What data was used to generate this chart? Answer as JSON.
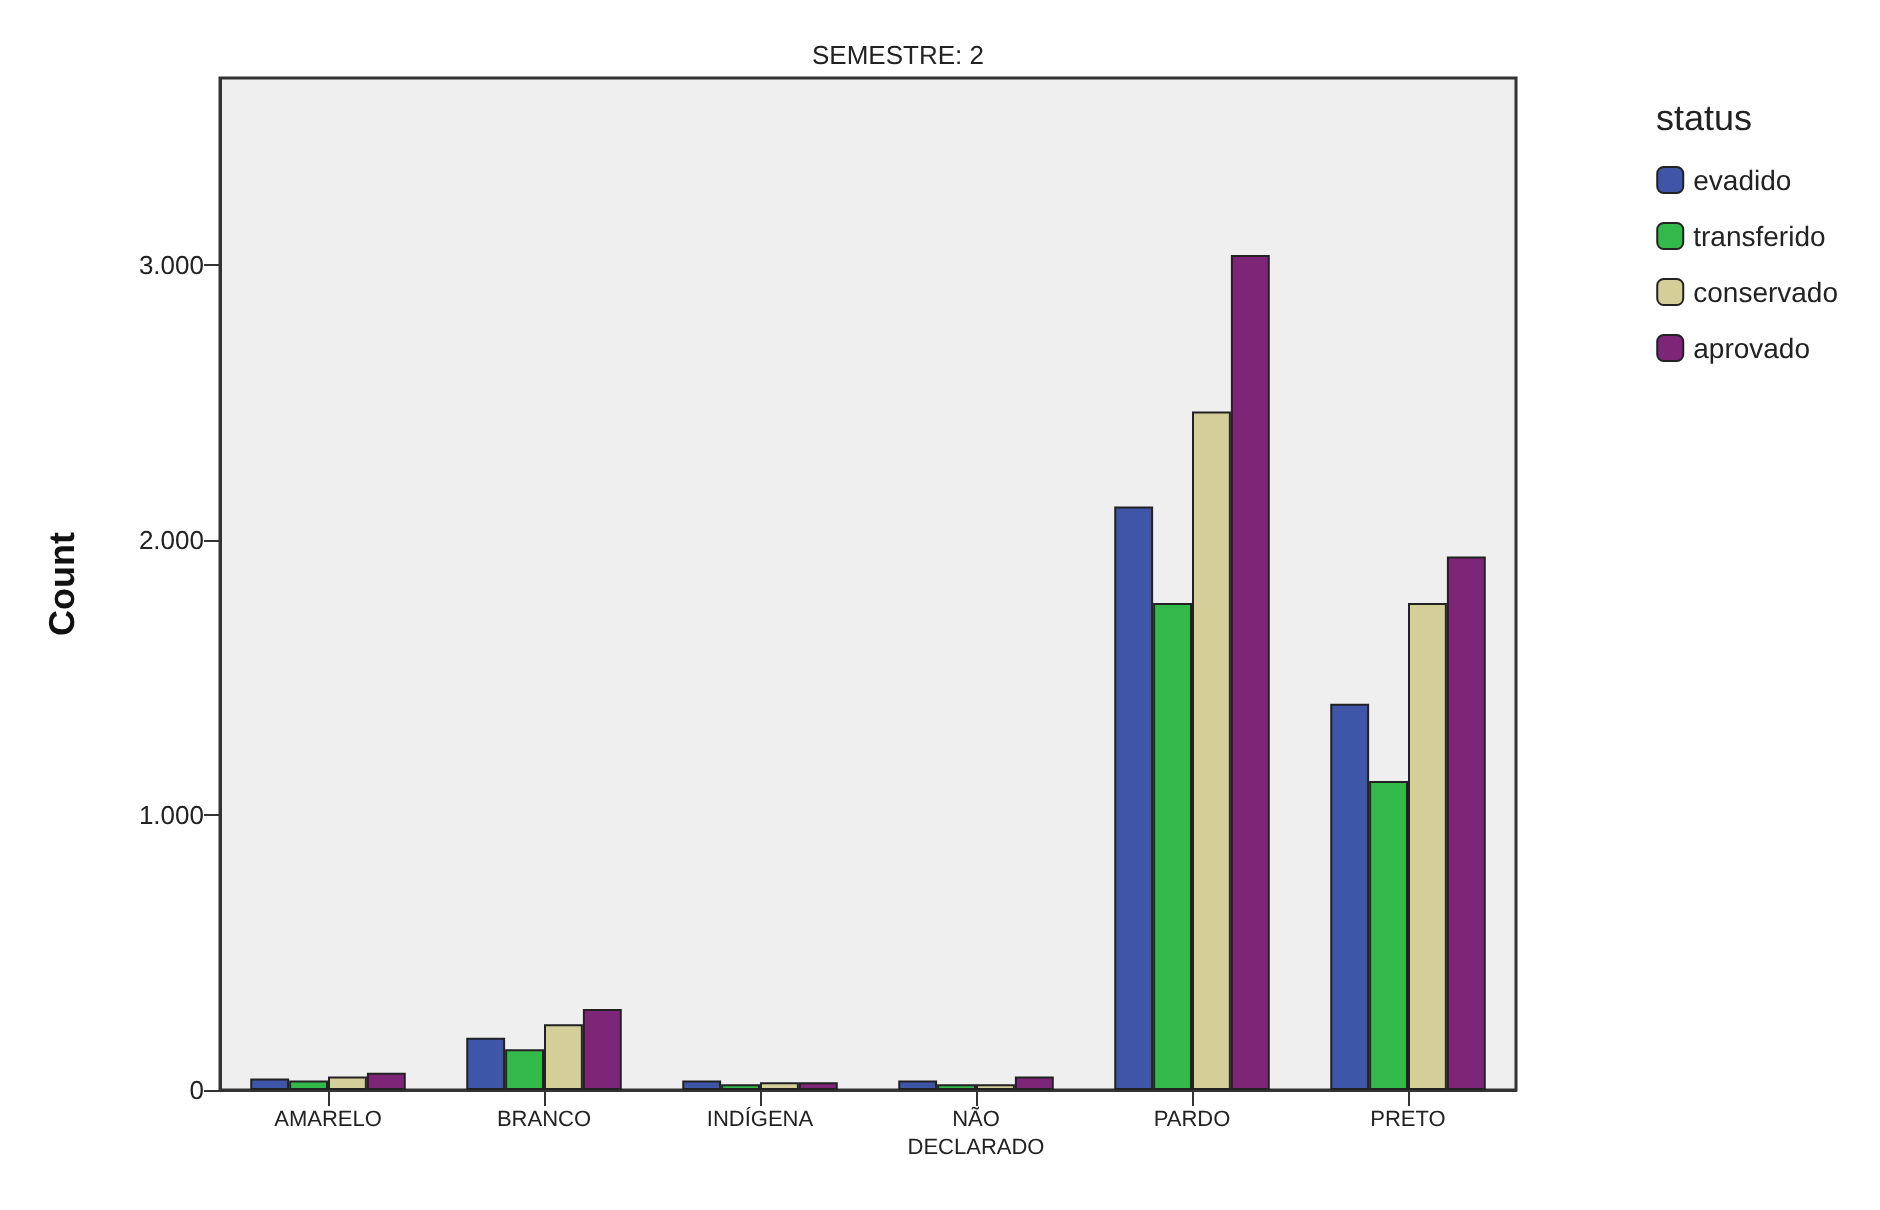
{
  "chart_data": {
    "type": "bar",
    "title": "SEMESTRE: 2",
    "ylabel": "Count",
    "legend_title": "status",
    "legend": "right",
    "categories": [
      "AMARELO",
      "BRANCO",
      "INDÍGENA",
      "NÃO\nDECLARADO",
      "PARDO",
      "PRETO"
    ],
    "series": [
      {
        "name": "evadido",
        "color": "#3e55a8",
        "values": [
          42,
          190,
          35,
          35,
          2122,
          1405
        ]
      },
      {
        "name": "transferido",
        "color": "#33b84a",
        "values": [
          35,
          148,
          21,
          21,
          1771,
          1124
        ]
      },
      {
        "name": "conservado",
        "color": "#d4cf98",
        "values": [
          49,
          239,
          28,
          21,
          2467,
          1771
        ]
      },
      {
        "name": "aprovado",
        "color": "#7d2576",
        "values": [
          63,
          295,
          28,
          49,
          3036,
          1940
        ]
      }
    ],
    "ylim": [
      0,
      3680
    ],
    "yticks": [
      {
        "value": 0,
        "label": "0"
      },
      {
        "value": 1000,
        "label": "1.000"
      },
      {
        "value": 2000,
        "label": "2.000"
      },
      {
        "value": 3000,
        "label": "3.000"
      }
    ],
    "grid": false
  }
}
